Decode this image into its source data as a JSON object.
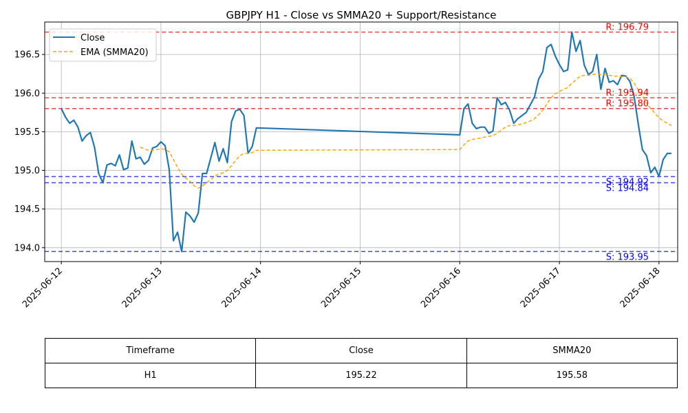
{
  "chart_data": {
    "type": "line",
    "title": "GBPJPY H1 - Close vs SMMA20 + Support/Resistance",
    "xlabel": "",
    "ylabel": "",
    "xlim": [
      "2025-06-11 20:00",
      "2025-06-18 04:30"
    ],
    "ylim": [
      193.82,
      196.92
    ],
    "x_ticks": [
      "2025-06-12",
      "2025-06-13",
      "2025-06-14",
      "2025-06-15",
      "2025-06-16",
      "2025-06-17",
      "2025-06-18"
    ],
    "y_ticks": [
      "194.0",
      "194.5",
      "195.0",
      "195.5",
      "196.0",
      "196.5"
    ],
    "grid": true,
    "legend_position": "top-left",
    "series": [
      {
        "name": "Close",
        "color": "#1f77b4",
        "style": "solid",
        "points": [
          [
            "2025-06-12 00:00",
            195.8
          ],
          [
            "2025-06-12 01:00",
            195.69
          ],
          [
            "2025-06-12 02:00",
            195.61
          ],
          [
            "2025-06-12 03:00",
            195.65
          ],
          [
            "2025-06-12 04:00",
            195.56
          ],
          [
            "2025-06-12 05:00",
            195.38
          ],
          [
            "2025-06-12 06:00",
            195.45
          ],
          [
            "2025-06-12 07:00",
            195.49
          ],
          [
            "2025-06-12 08:00",
            195.3
          ],
          [
            "2025-06-12 09:00",
            194.96
          ],
          [
            "2025-06-12 10:00",
            194.84
          ],
          [
            "2025-06-12 11:00",
            195.07
          ],
          [
            "2025-06-12 12:00",
            195.09
          ],
          [
            "2025-06-12 13:00",
            195.06
          ],
          [
            "2025-06-12 14:00",
            195.2
          ],
          [
            "2025-06-12 15:00",
            195.01
          ],
          [
            "2025-06-12 16:00",
            195.03
          ],
          [
            "2025-06-12 17:00",
            195.38
          ],
          [
            "2025-06-12 18:00",
            195.15
          ],
          [
            "2025-06-12 19:00",
            195.17
          ],
          [
            "2025-06-12 20:00",
            195.08
          ],
          [
            "2025-06-12 21:00",
            195.13
          ],
          [
            "2025-06-12 22:00",
            195.29
          ],
          [
            "2025-06-12 23:00",
            195.31
          ],
          [
            "2025-06-13 00:00",
            195.37
          ],
          [
            "2025-06-13 01:00",
            195.32
          ],
          [
            "2025-06-13 02:00",
            195.01
          ],
          [
            "2025-06-13 03:00",
            194.09
          ],
          [
            "2025-06-13 04:00",
            194.2
          ],
          [
            "2025-06-13 05:00",
            193.95
          ],
          [
            "2025-06-13 06:00",
            194.46
          ],
          [
            "2025-06-13 07:00",
            194.41
          ],
          [
            "2025-06-13 08:00",
            194.33
          ],
          [
            "2025-06-13 09:00",
            194.45
          ],
          [
            "2025-06-13 10:00",
            194.96
          ],
          [
            "2025-06-13 11:00",
            194.96
          ],
          [
            "2025-06-13 12:00",
            195.16
          ],
          [
            "2025-06-13 13:00",
            195.36
          ],
          [
            "2025-06-13 14:00",
            195.12
          ],
          [
            "2025-06-13 15:00",
            195.28
          ],
          [
            "2025-06-13 16:00",
            195.1
          ],
          [
            "2025-06-13 17:00",
            195.63
          ],
          [
            "2025-06-13 18:00",
            195.77
          ],
          [
            "2025-06-13 19:00",
            195.79
          ],
          [
            "2025-06-13 20:00",
            195.71
          ],
          [
            "2025-06-13 21:00",
            195.22
          ],
          [
            "2025-06-13 22:00",
            195.31
          ],
          [
            "2025-06-13 23:00",
            195.55
          ],
          [
            "2025-06-16 00:00",
            195.46
          ],
          [
            "2025-06-16 01:00",
            195.8
          ],
          [
            "2025-06-16 02:00",
            195.86
          ],
          [
            "2025-06-16 03:00",
            195.61
          ],
          [
            "2025-06-16 04:00",
            195.54
          ],
          [
            "2025-06-16 05:00",
            195.56
          ],
          [
            "2025-06-16 06:00",
            195.56
          ],
          [
            "2025-06-16 07:00",
            195.48
          ],
          [
            "2025-06-16 08:00",
            195.51
          ],
          [
            "2025-06-16 09:00",
            195.94
          ],
          [
            "2025-06-16 10:00",
            195.85
          ],
          [
            "2025-06-16 11:00",
            195.88
          ],
          [
            "2025-06-16 12:00",
            195.78
          ],
          [
            "2025-06-16 13:00",
            195.61
          ],
          [
            "2025-06-16 14:00",
            195.67
          ],
          [
            "2025-06-16 15:00",
            195.71
          ],
          [
            "2025-06-16 16:00",
            195.75
          ],
          [
            "2025-06-16 17:00",
            195.85
          ],
          [
            "2025-06-16 18:00",
            195.95
          ],
          [
            "2025-06-16 19:00",
            196.18
          ],
          [
            "2025-06-16 20:00",
            196.28
          ],
          [
            "2025-06-16 21:00",
            196.59
          ],
          [
            "2025-06-16 22:00",
            196.63
          ],
          [
            "2025-06-16 23:00",
            196.48
          ],
          [
            "2025-06-17 00:00",
            196.37
          ],
          [
            "2025-06-17 01:00",
            196.28
          ],
          [
            "2025-06-17 02:00",
            196.3
          ],
          [
            "2025-06-17 03:00",
            196.79
          ],
          [
            "2025-06-17 04:00",
            196.54
          ],
          [
            "2025-06-17 05:00",
            196.68
          ],
          [
            "2025-06-17 06:00",
            196.36
          ],
          [
            "2025-06-17 07:00",
            196.24
          ],
          [
            "2025-06-17 08:00",
            196.28
          ],
          [
            "2025-06-17 09:00",
            196.5
          ],
          [
            "2025-06-17 10:00",
            196.05
          ],
          [
            "2025-06-17 11:00",
            196.32
          ],
          [
            "2025-06-17 12:00",
            196.14
          ],
          [
            "2025-06-17 13:00",
            196.16
          ],
          [
            "2025-06-17 14:00",
            196.11
          ],
          [
            "2025-06-17 15:00",
            196.23
          ],
          [
            "2025-06-17 16:00",
            196.22
          ],
          [
            "2025-06-17 17:00",
            196.15
          ],
          [
            "2025-06-17 18:00",
            195.96
          ],
          [
            "2025-06-17 19:00",
            195.6
          ],
          [
            "2025-06-17 20:00",
            195.27
          ],
          [
            "2025-06-17 21:00",
            195.19
          ],
          [
            "2025-06-17 22:00",
            194.97
          ],
          [
            "2025-06-17 23:00",
            195.04
          ],
          [
            "2025-06-18 00:00",
            194.92
          ],
          [
            "2025-06-18 01:00",
            195.14
          ],
          [
            "2025-06-18 02:00",
            195.22
          ],
          [
            "2025-06-18 03:00",
            195.22
          ]
        ]
      },
      {
        "name": "EMA (SMMA20)",
        "color": "#ffa500",
        "style": "dashed",
        "points": [
          [
            "2025-06-12 19:00",
            195.3
          ],
          [
            "2025-06-12 20:00",
            195.28
          ],
          [
            "2025-06-12 21:00",
            195.26
          ],
          [
            "2025-06-12 22:00",
            195.26
          ],
          [
            "2025-06-12 23:00",
            195.27
          ],
          [
            "2025-06-13 00:00",
            195.28
          ],
          [
            "2025-06-13 01:00",
            195.27
          ],
          [
            "2025-06-13 02:00",
            195.24
          ],
          [
            "2025-06-13 03:00",
            195.14
          ],
          [
            "2025-06-13 04:00",
            195.04
          ],
          [
            "2025-06-13 05:00",
            194.95
          ],
          [
            "2025-06-13 06:00",
            194.9
          ],
          [
            "2025-06-13 07:00",
            194.86
          ],
          [
            "2025-06-13 08:00",
            194.8
          ],
          [
            "2025-06-13 09:00",
            194.77
          ],
          [
            "2025-06-13 10:00",
            194.8
          ],
          [
            "2025-06-13 11:00",
            194.84
          ],
          [
            "2025-06-13 12:00",
            194.88
          ],
          [
            "2025-06-13 13:00",
            194.93
          ],
          [
            "2025-06-13 14:00",
            194.95
          ],
          [
            "2025-06-13 15:00",
            194.97
          ],
          [
            "2025-06-13 16:00",
            195.0
          ],
          [
            "2025-06-13 17:00",
            195.06
          ],
          [
            "2025-06-13 18:00",
            195.13
          ],
          [
            "2025-06-13 19:00",
            195.19
          ],
          [
            "2025-06-13 20:00",
            195.22
          ],
          [
            "2025-06-13 21:00",
            195.22
          ],
          [
            "2025-06-13 22:00",
            195.23
          ],
          [
            "2025-06-13 23:00",
            195.26
          ],
          [
            "2025-06-16 00:00",
            195.27
          ],
          [
            "2025-06-16 01:00",
            195.33
          ],
          [
            "2025-06-16 02:00",
            195.38
          ],
          [
            "2025-06-16 03:00",
            195.4
          ],
          [
            "2025-06-16 04:00",
            195.41
          ],
          [
            "2025-06-16 05:00",
            195.42
          ],
          [
            "2025-06-16 06:00",
            195.43
          ],
          [
            "2025-06-16 07:00",
            195.44
          ],
          [
            "2025-06-16 08:00",
            195.45
          ],
          [
            "2025-06-16 09:00",
            195.48
          ],
          [
            "2025-06-16 10:00",
            195.52
          ],
          [
            "2025-06-16 11:00",
            195.56
          ],
          [
            "2025-06-16 12:00",
            195.58
          ],
          [
            "2025-06-16 13:00",
            195.58
          ],
          [
            "2025-06-16 14:00",
            195.59
          ],
          [
            "2025-06-16 15:00",
            195.6
          ],
          [
            "2025-06-16 16:00",
            195.62
          ],
          [
            "2025-06-16 17:00",
            195.64
          ],
          [
            "2025-06-16 18:00",
            195.67
          ],
          [
            "2025-06-16 19:00",
            195.72
          ],
          [
            "2025-06-16 20:00",
            195.78
          ],
          [
            "2025-06-16 21:00",
            195.86
          ],
          [
            "2025-06-16 22:00",
            195.94
          ],
          [
            "2025-06-16 23:00",
            195.99
          ],
          [
            "2025-06-17 00:00",
            196.02
          ],
          [
            "2025-06-17 01:00",
            196.05
          ],
          [
            "2025-06-17 02:00",
            196.07
          ],
          [
            "2025-06-17 03:00",
            196.13
          ],
          [
            "2025-06-17 04:00",
            196.17
          ],
          [
            "2025-06-17 05:00",
            196.22
          ],
          [
            "2025-06-17 06:00",
            196.23
          ],
          [
            "2025-06-17 07:00",
            196.23
          ],
          [
            "2025-06-17 08:00",
            196.24
          ],
          [
            "2025-06-17 09:00",
            196.25
          ],
          [
            "2025-06-17 10:00",
            196.24
          ],
          [
            "2025-06-17 11:00",
            196.24
          ],
          [
            "2025-06-17 12:00",
            196.23
          ],
          [
            "2025-06-17 13:00",
            196.22
          ],
          [
            "2025-06-17 14:00",
            196.22
          ],
          [
            "2025-06-17 15:00",
            196.21
          ],
          [
            "2025-06-17 16:00",
            196.21
          ],
          [
            "2025-06-17 17:00",
            196.19
          ],
          [
            "2025-06-17 18:00",
            196.13
          ],
          [
            "2025-06-17 19:00",
            196.04
          ],
          [
            "2025-06-17 20:00",
            195.96
          ],
          [
            "2025-06-17 21:00",
            195.87
          ],
          [
            "2025-06-17 22:00",
            195.8
          ],
          [
            "2025-06-17 23:00",
            195.74
          ],
          [
            "2025-06-18 00:00",
            195.68
          ],
          [
            "2025-06-18 01:00",
            195.64
          ],
          [
            "2025-06-18 02:00",
            195.61
          ],
          [
            "2025-06-18 03:00",
            195.58
          ]
        ]
      }
    ],
    "levels": [
      {
        "kind": "resistance",
        "value": 196.79,
        "label": "R: 196.79",
        "color": "#ff0000"
      },
      {
        "kind": "resistance",
        "value": 195.94,
        "label": "R: 195.94",
        "color": "#ff0000"
      },
      {
        "kind": "resistance",
        "value": 195.8,
        "label": "R: 195.80",
        "color": "#ff0000"
      },
      {
        "kind": "support",
        "value": 194.92,
        "label": "S: 194.92",
        "color": "#0000ff"
      },
      {
        "kind": "support",
        "value": 194.84,
        "label": "S: 194.84",
        "color": "#0000ff"
      },
      {
        "kind": "support",
        "value": 193.95,
        "label": "S: 193.95",
        "color": "#0000ff"
      }
    ]
  },
  "table": {
    "headers": [
      "Timeframe",
      "Close",
      "SMMA20"
    ],
    "rows": [
      [
        "H1",
        "195.22",
        "195.58"
      ]
    ]
  }
}
